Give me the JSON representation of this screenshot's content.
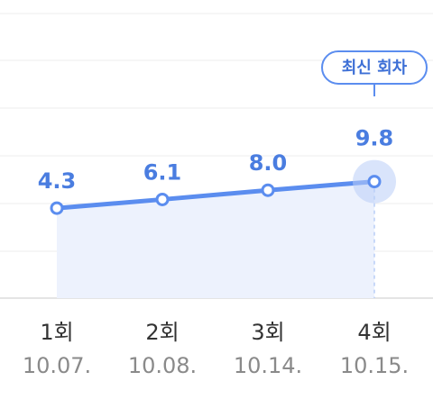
{
  "chart_data": {
    "type": "line",
    "categories": [
      "1회",
      "2회",
      "3회",
      "4회"
    ],
    "dates": [
      "10.07.",
      "10.08.",
      "10.14.",
      "10.15."
    ],
    "values": [
      4.3,
      6.1,
      8.0,
      9.8
    ],
    "value_labels": [
      "4.3",
      "6.1",
      "8.0",
      "9.8"
    ],
    "annotation": "최신 회차",
    "grid": true,
    "area_fill": true,
    "highlight_index": 3
  },
  "colors": {
    "line": "#5b8def",
    "area": "#edf2fd",
    "value_text": "#4a7de0",
    "badge_border": "#5b8def",
    "badge_text": "#3d6fd6",
    "grid": "#ececec",
    "baseline": "#dcdcdc",
    "halo": "#b9cef7"
  }
}
